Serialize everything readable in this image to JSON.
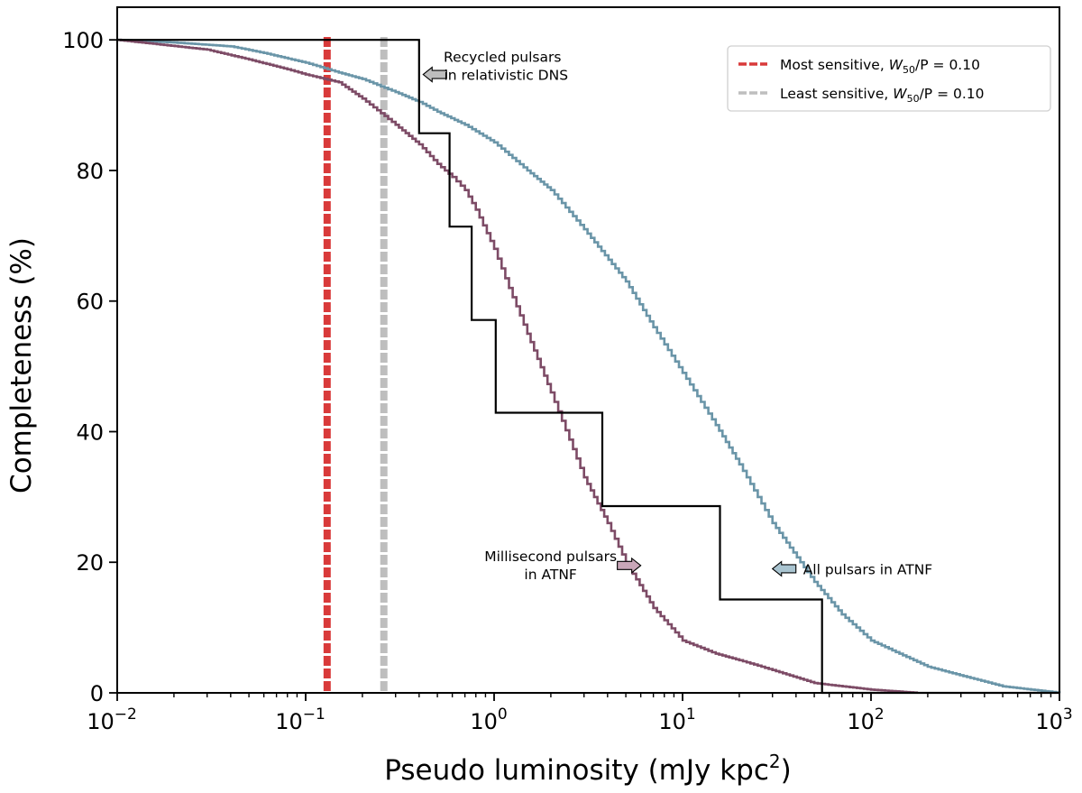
{
  "chart_data": {
    "type": "line",
    "xscale": "log",
    "xlim": [
      0.01,
      1000
    ],
    "ylim": [
      0,
      105
    ],
    "xlabel": "Pseudo luminosity (mJy kpc²)",
    "ylabel": "Completeness (%)",
    "x_ticks": [
      {
        "value": 0.01,
        "base": "10",
        "exp": "−2"
      },
      {
        "value": 0.1,
        "base": "10",
        "exp": "−1"
      },
      {
        "value": 1,
        "base": "10",
        "exp": "0"
      },
      {
        "value": 10,
        "base": "10",
        "exp": "1"
      },
      {
        "value": 100,
        "base": "10",
        "exp": "2"
      },
      {
        "value": 1000,
        "base": "10",
        "exp": "3"
      }
    ],
    "y_ticks": [
      0,
      20,
      40,
      60,
      80,
      100
    ],
    "y_tick_labels": [
      "0",
      "20",
      "40",
      "60",
      "80",
      "100"
    ],
    "series": [
      {
        "name": "All pulsars in ATNF",
        "color": "#6a95a8",
        "style": "step",
        "x": [
          0.01,
          0.02,
          0.04,
          0.06,
          0.1,
          0.15,
          0.2,
          0.3,
          0.4,
          0.5,
          0.7,
          1.0,
          1.5,
          2,
          3,
          5,
          7,
          10,
          15,
          20,
          30,
          50,
          70,
          100,
          200,
          500,
          1000
        ],
        "y": [
          100,
          99.6,
          99,
          98,
          96.5,
          95,
          94,
          92,
          90.5,
          89,
          87,
          84.3,
          80,
          77,
          71,
          63,
          56,
          49,
          41,
          35,
          26,
          17,
          12,
          8,
          4,
          1,
          0
        ]
      },
      {
        "name": "Millisecond pulsars in ATNF",
        "color": "#7d4b66",
        "style": "step",
        "x": [
          0.01,
          0.03,
          0.05,
          0.08,
          0.1,
          0.15,
          0.2,
          0.3,
          0.4,
          0.5,
          0.6,
          0.7,
          0.8,
          1.0,
          1.2,
          1.5,
          2,
          3,
          4,
          5,
          7,
          10,
          15,
          20,
          30,
          50,
          100,
          175
        ],
        "y": [
          100,
          98.5,
          97,
          95.5,
          94.7,
          93.5,
          91,
          87,
          84,
          81,
          79,
          77,
          74,
          68,
          62,
          55,
          46,
          33,
          26,
          20,
          13,
          8,
          6,
          5,
          3.5,
          1.5,
          0.5,
          0
        ]
      },
      {
        "name": "Recycled pulsars in relativistic DNS",
        "color": "#000000",
        "style": "step",
        "x": [
          0.01,
          0.4,
          0.4,
          0.58,
          0.58,
          0.76,
          0.76,
          1.02,
          1.02,
          3.75,
          3.75,
          15.8,
          15.8,
          55,
          55,
          1000
        ],
        "y": [
          100,
          100,
          85.7,
          85.7,
          71.4,
          71.4,
          57.1,
          57.1,
          42.9,
          42.9,
          28.6,
          28.6,
          14.3,
          14.3,
          0,
          0
        ]
      }
    ],
    "vlines": [
      {
        "x": 0.13,
        "color": "#d93a3a",
        "label_prefix": "Most sensitive, ",
        "label_math": "W",
        "label_sub": "50",
        "label_suffix": "/P = 0.10"
      },
      {
        "x": 0.26,
        "color": "#bebebe",
        "label_prefix": "Least sensitive, ",
        "label_math": "W",
        "label_sub": "50",
        "label_suffix": "/P = 0.10"
      }
    ],
    "annotations": [
      {
        "lines": [
          "Recycled pulsars",
          "in relativistic DNS"
        ],
        "arrow_x": 0.42,
        "arrow_y": 94.7,
        "arrow_color": "#bebebe",
        "align": "left"
      },
      {
        "lines": [
          "Millisecond pulsars",
          "in ATNF"
        ],
        "arrow_x": 6.0,
        "arrow_y": 19.5,
        "arrow_color": "#c9a6b8",
        "align": "right"
      },
      {
        "lines": [
          "All pulsars in ATNF"
        ],
        "arrow_x": 30,
        "arrow_y": 19,
        "arrow_color": "#a9c4d0",
        "align": "left"
      }
    ],
    "legend_position": "top-right"
  }
}
